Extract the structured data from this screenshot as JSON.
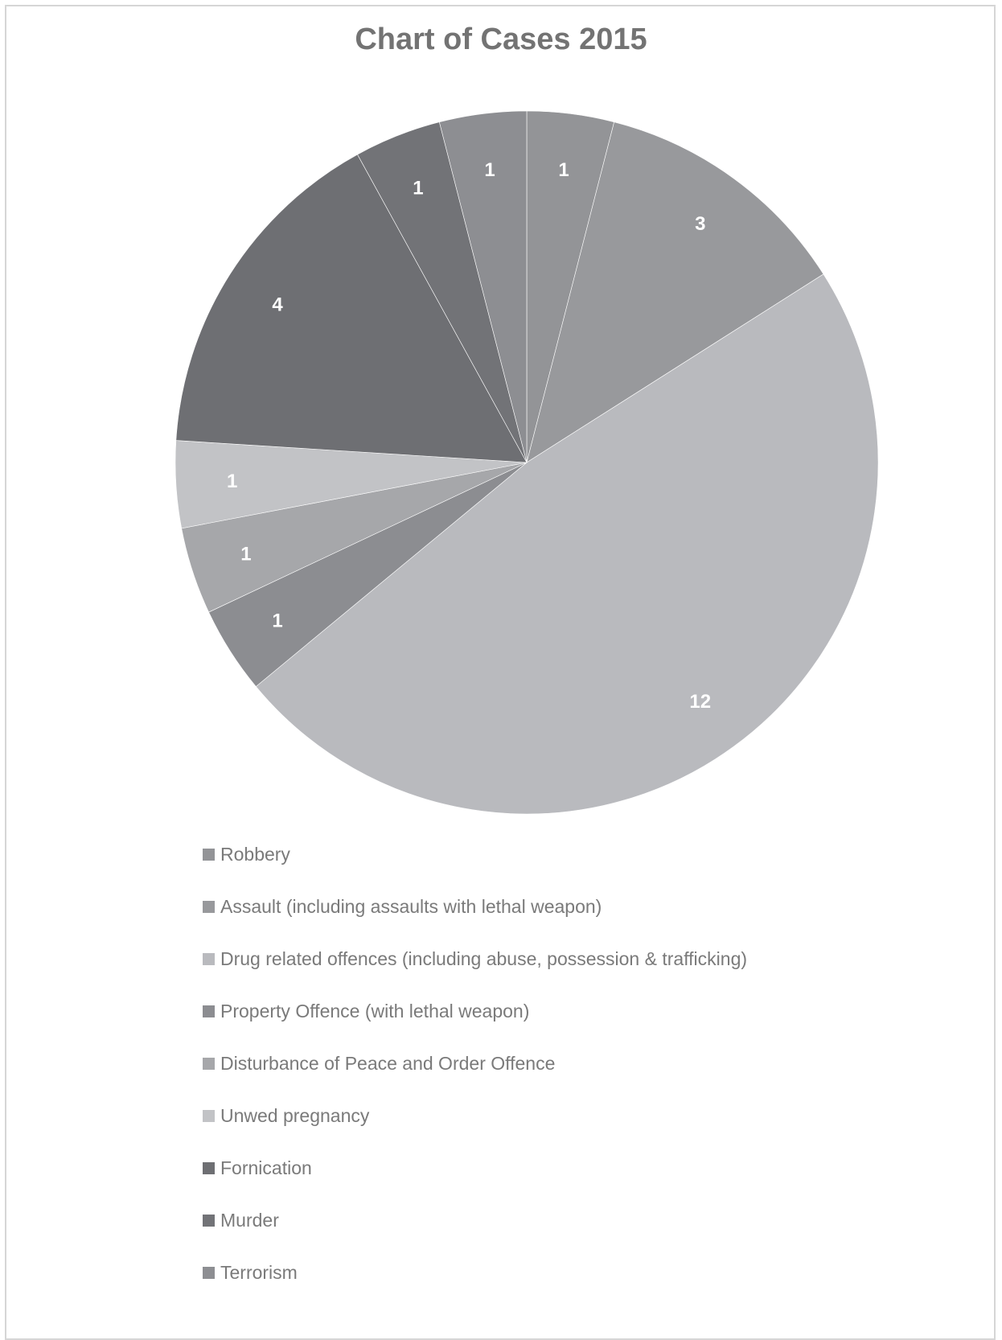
{
  "chart_data": {
    "type": "pie",
    "title": "Chart of Cases 2015",
    "categories": [
      "Robbery",
      "Assault (including assaults with lethal weapon)",
      "Drug related offences (including abuse, possession & trafficking)",
      "Property Offence (with lethal weapon)",
      "Disturbance of Peace and Order Offence",
      "Unwed pregnancy",
      "Fornication",
      "Murder",
      "Terrorism"
    ],
    "values": [
      1,
      3,
      12,
      1,
      1,
      1,
      4,
      1,
      1
    ],
    "colors": [
      "#939497",
      "#98999c",
      "#b9babe",
      "#8c8d91",
      "#a6a7aa",
      "#c2c3c6",
      "#6e6f73",
      "#727377",
      "#8d8e92"
    ],
    "data_labels": [
      "1",
      "3",
      "12",
      "1",
      "1",
      "1",
      "4",
      "1",
      "1"
    ],
    "start_angle_deg": 0,
    "direction": "clockwise",
    "legend_position": "bottom"
  }
}
